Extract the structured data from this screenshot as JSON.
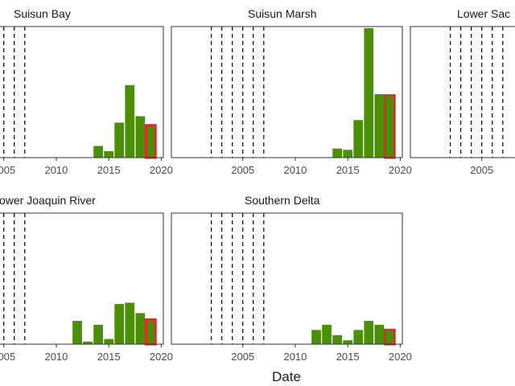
{
  "chart_data": {
    "type": "bar",
    "xlabel": "Date",
    "ylabel": "",
    "colors": {
      "bar_fill": "#4a8f06",
      "highlight_outline": "#d32f2f",
      "event_line": "#000000"
    },
    "x_ticks": [
      "2005",
      "2010",
      "2015",
      "2020"
    ],
    "highlight_year": 2019,
    "event_lines": [
      2002,
      2003,
      2004,
      2005,
      2006,
      2007
    ],
    "panels": [
      {
        "title": "Suisun Bay",
        "x": [
          2014,
          2015,
          2016,
          2017,
          2018,
          2019
        ],
        "values": [
          0.09,
          0.05,
          0.27,
          0.56,
          0.32,
          0.25
        ]
      },
      {
        "title": "Suisun Marsh",
        "x": [
          2014,
          2015,
          2016,
          2017,
          2018,
          2019
        ],
        "values": [
          0.07,
          0.06,
          0.29,
          1.0,
          0.49,
          0.48
        ]
      },
      {
        "title": "Lower Sac",
        "x": [],
        "values": []
      },
      {
        "title": "ower Joaquin River",
        "x": [
          2012,
          2013,
          2014,
          2015,
          2016,
          2017,
          2018,
          2019
        ],
        "values": [
          0.18,
          0.02,
          0.15,
          0.04,
          0.31,
          0.32,
          0.24,
          0.19
        ]
      },
      {
        "title": "Southern Delta",
        "x": [
          2012,
          2013,
          2014,
          2015,
          2016,
          2017,
          2018,
          2019
        ],
        "values": [
          0.11,
          0.15,
          0.07,
          0.03,
          0.11,
          0.18,
          0.15,
          0.11
        ]
      }
    ]
  }
}
